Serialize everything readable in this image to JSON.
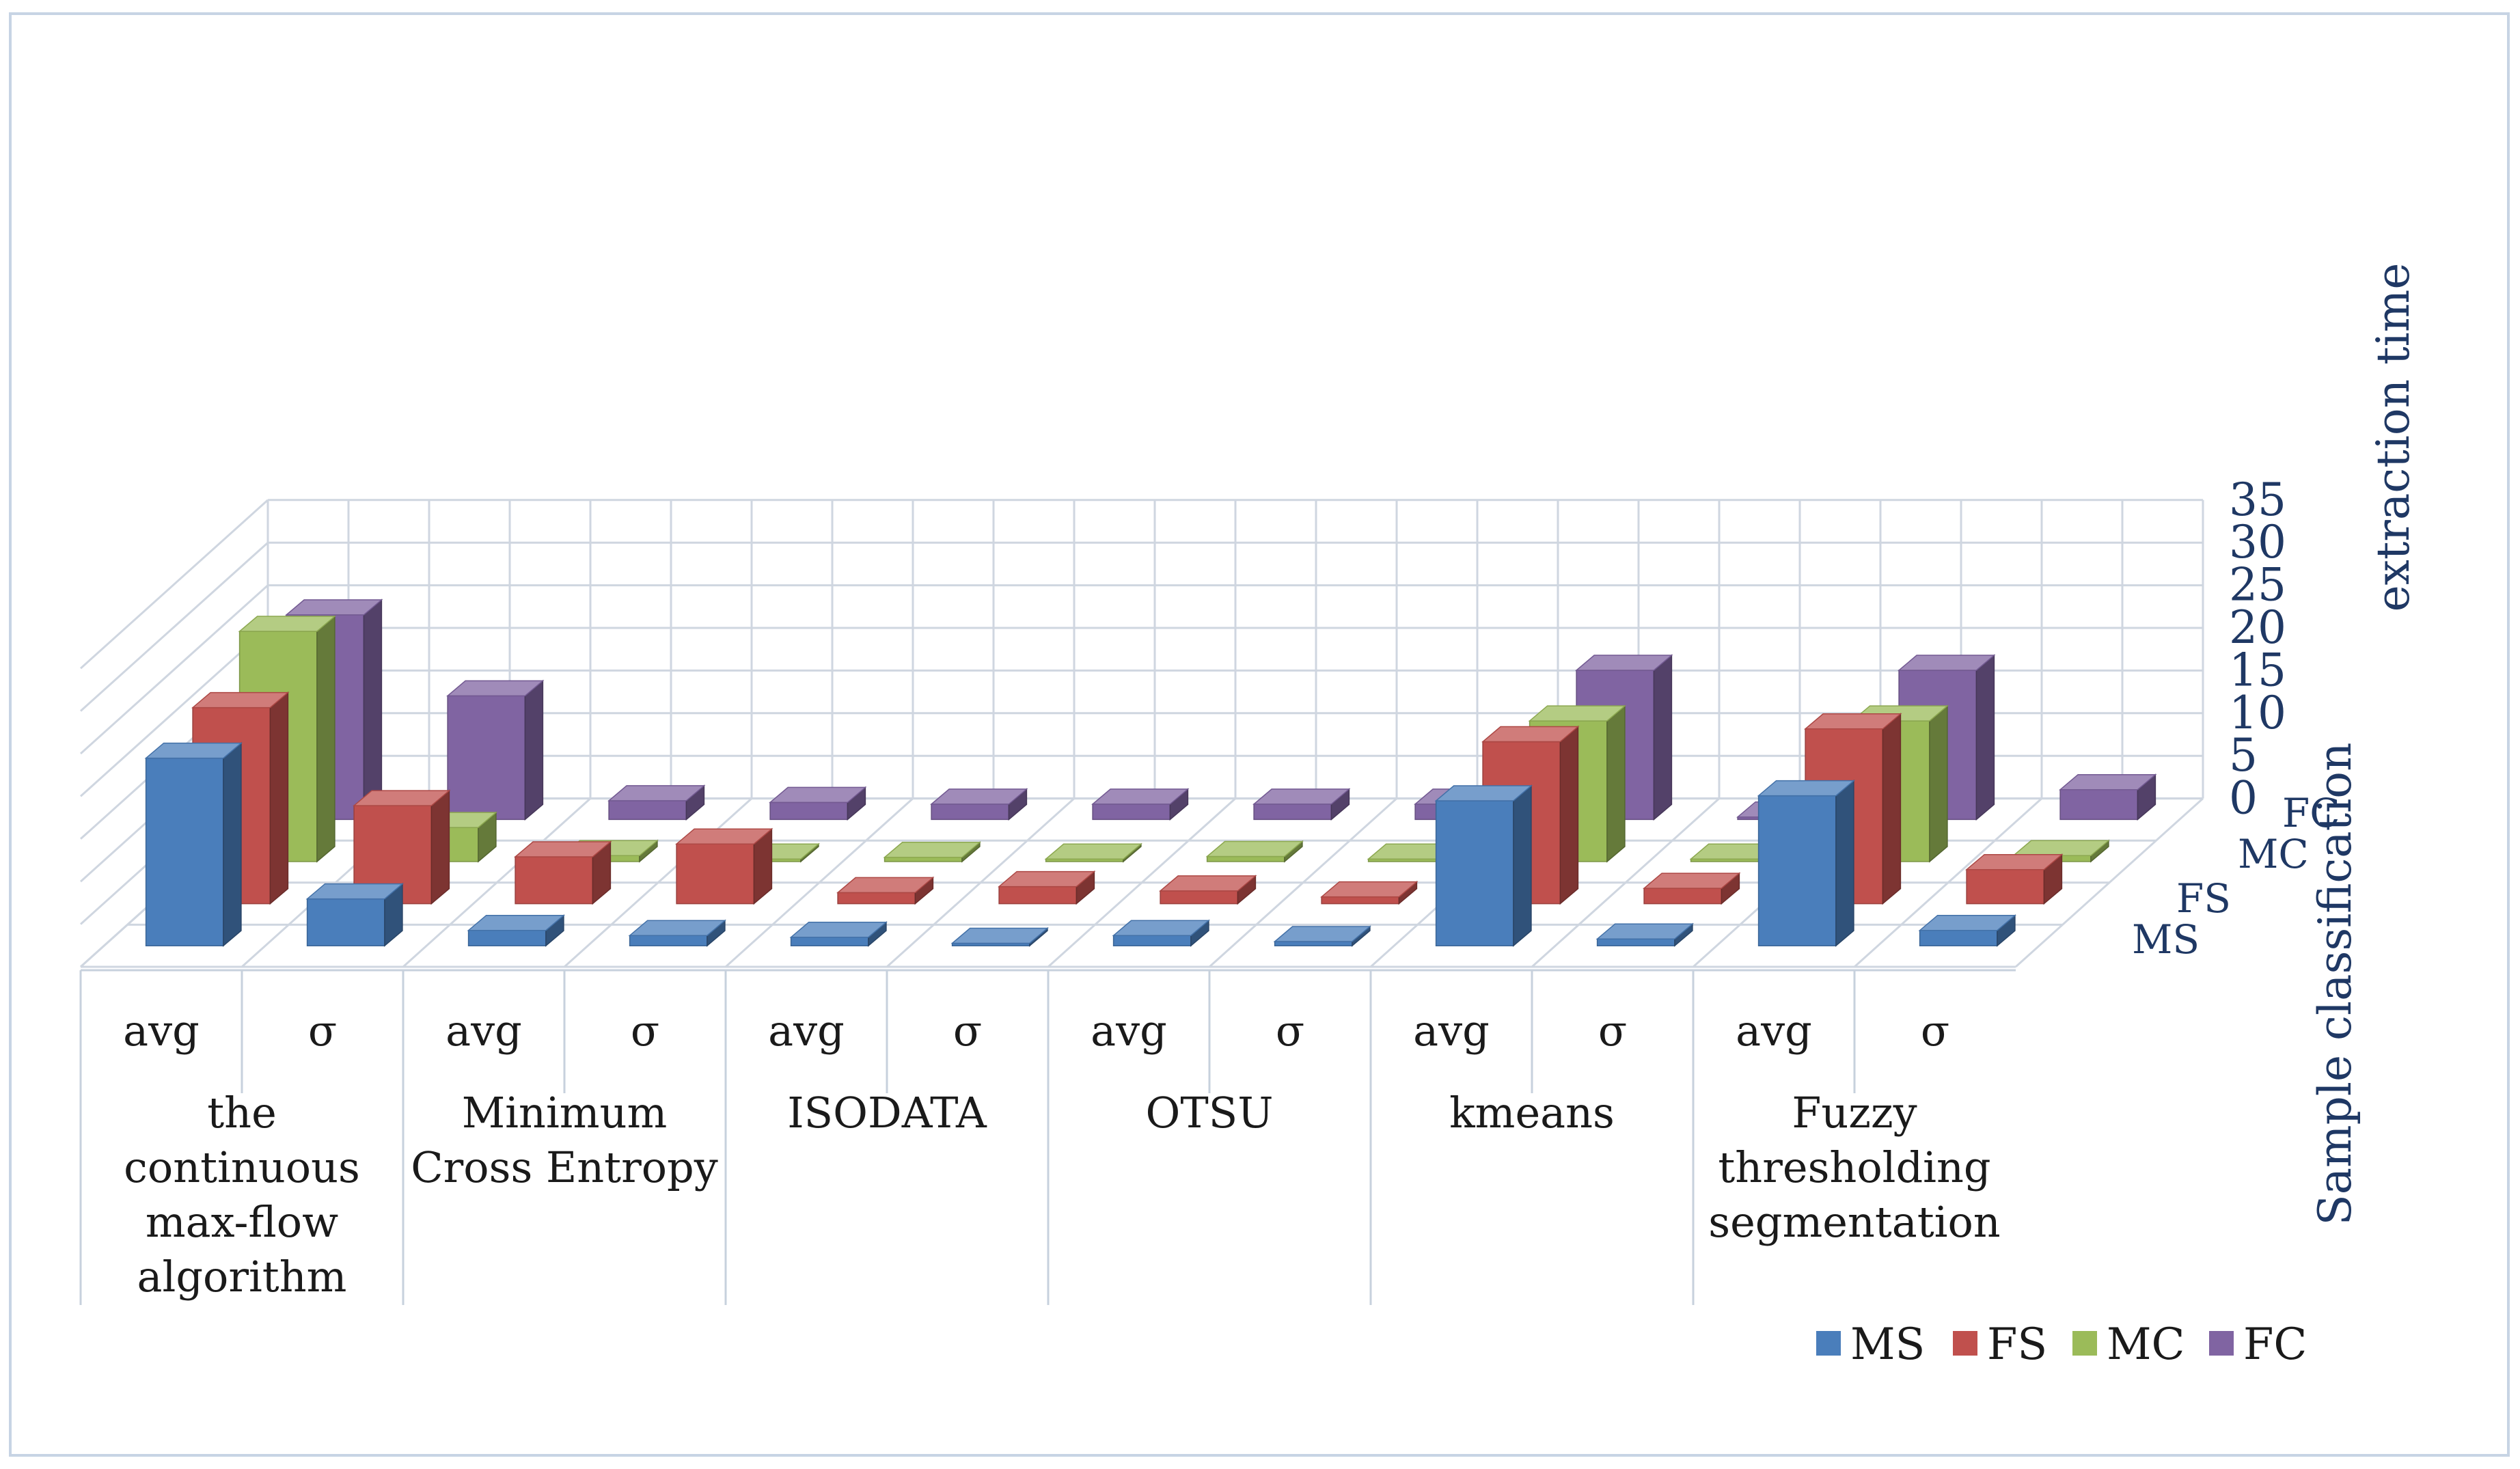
{
  "chart_data": {
    "type": "bar3d",
    "title": "",
    "ylabel": "extraction time",
    "zlabel": "Sample classification",
    "ylim": [
      0,
      35
    ],
    "yticks": [
      "0",
      "5",
      "10",
      "15",
      "20",
      "25",
      "30",
      "35"
    ],
    "categories": [
      {
        "label": "avg",
        "group": "the continuous max-flow algorithm"
      },
      {
        "label": "σ",
        "group": "the continuous max-flow algorithm"
      },
      {
        "label": "avg",
        "group": "Minimum Cross Entropy"
      },
      {
        "label": "σ",
        "group": "Minimum Cross Entropy"
      },
      {
        "label": "avg",
        "group": "ISODATA"
      },
      {
        "label": "σ",
        "group": "ISODATA"
      },
      {
        "label": "avg",
        "group": "OTSU"
      },
      {
        "label": "σ",
        "group": "OTSU"
      },
      {
        "label": "avg",
        "group": "kmeans"
      },
      {
        "label": "σ",
        "group": "kmeans"
      },
      {
        "label": "avg",
        "group": "Fuzzy thresholding segmentation"
      },
      {
        "label": "σ",
        "group": "Fuzzy thresholding segmentation"
      }
    ],
    "groups": [
      {
        "name": "the continuous max-flow algorithm",
        "lines": [
          "the",
          "continuous",
          "max-flow",
          "algorithm"
        ]
      },
      {
        "name": "Minimum Cross Entropy",
        "lines": [
          "Minimum",
          "Cross Entropy"
        ]
      },
      {
        "name": "ISODATA",
        "lines": [
          "ISODATA"
        ]
      },
      {
        "name": "OTSU",
        "lines": [
          "OTSU"
        ]
      },
      {
        "name": "kmeans",
        "lines": [
          "kmeans"
        ]
      },
      {
        "name": "Fuzzy thresholding segmentation",
        "lines": [
          "Fuzzy",
          "thresholding",
          "segmentation"
        ]
      }
    ],
    "series": [
      {
        "name": "MS",
        "color": "#4a7ebb",
        "values": [
          22,
          5.5,
          1.8,
          1.2,
          1.0,
          0.3,
          1.2,
          0.5,
          17,
          0.8,
          17.6,
          1.8
        ]
      },
      {
        "name": "FS",
        "color": "#c0504d",
        "values": [
          23,
          11.5,
          5.5,
          7,
          1.3,
          2.0,
          1.5,
          0.8,
          19,
          1.8,
          20.5,
          4.0
        ]
      },
      {
        "name": "MC",
        "color": "#9bbb59",
        "values": [
          27,
          4.0,
          0.7,
          0.3,
          0.5,
          0.3,
          0.6,
          0.3,
          16.5,
          0.3,
          16.5,
          0.7
        ]
      },
      {
        "name": "FC",
        "color": "#8064a2",
        "values": [
          24,
          14.5,
          2.2,
          2.0,
          1.8,
          1.8,
          1.8,
          1.8,
          17.5,
          0.3,
          17.5,
          3.5
        ]
      }
    ]
  }
}
